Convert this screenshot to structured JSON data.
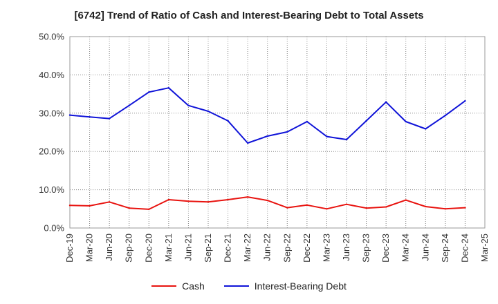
{
  "chart_data": {
    "type": "line",
    "title": "[6742]  Trend of Ratio of Cash and Interest-Bearing Debt to Total Assets",
    "xlabel": "",
    "ylabel": "",
    "ylim": [
      0,
      50
    ],
    "yticks": [
      "0.0%",
      "10.0%",
      "20.0%",
      "30.0%",
      "40.0%",
      "50.0%"
    ],
    "categories": [
      "Dec-19",
      "Mar-20",
      "Jun-20",
      "Sep-20",
      "Dec-20",
      "Mar-21",
      "Jun-21",
      "Sep-21",
      "Dec-21",
      "Mar-22",
      "Jun-22",
      "Sep-22",
      "Dec-22",
      "Mar-23",
      "Jun-23",
      "Sep-23",
      "Dec-23",
      "Mar-24",
      "Jun-24",
      "Sep-24",
      "Dec-24",
      "Mar-25"
    ],
    "grid": true,
    "legend_position": "bottom",
    "series": [
      {
        "name": "Cash",
        "color": "#e8130f",
        "values": [
          5.9,
          5.8,
          6.8,
          5.2,
          4.9,
          7.4,
          7.0,
          6.8,
          7.4,
          8.1,
          7.2,
          5.3,
          6.0,
          5.0,
          6.2,
          5.2,
          5.5,
          7.3,
          5.6,
          5.0,
          5.3,
          null
        ]
      },
      {
        "name": "Interest-Bearing Debt",
        "color": "#0f13d8",
        "values": [
          29.5,
          29.0,
          28.6,
          32.0,
          35.5,
          36.6,
          32.0,
          30.5,
          28.0,
          22.2,
          24.0,
          25.1,
          27.8,
          23.9,
          23.1,
          28.0,
          32.9,
          27.8,
          25.9,
          29.4,
          33.2,
          null
        ]
      }
    ]
  }
}
